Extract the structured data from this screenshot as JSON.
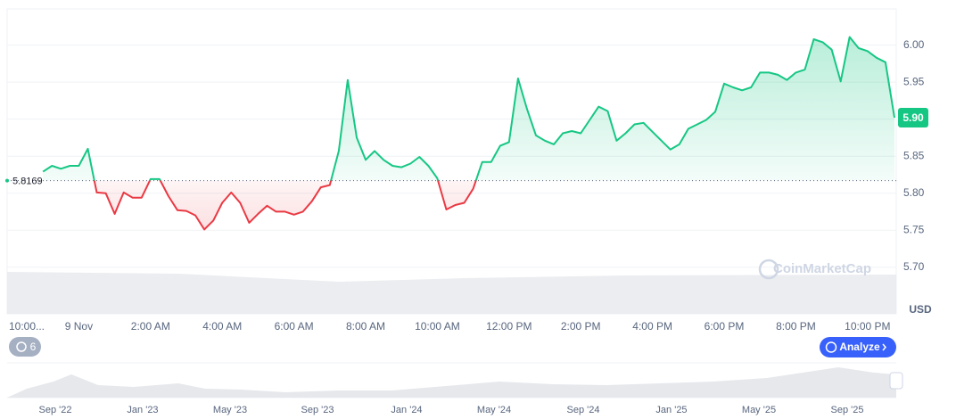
{
  "chart_data": {
    "type": "line",
    "baseline": 5.8169,
    "color_up": "#16c784",
    "color_down": "#ea3943",
    "grid": true,
    "x": [
      -1,
      -0.75,
      -0.5,
      -0.25,
      0,
      0.25,
      0.5,
      0.75,
      1,
      1.25,
      1.5,
      1.75,
      2,
      2.25,
      2.5,
      2.75,
      3,
      3.25,
      3.5,
      3.75,
      4,
      4.25,
      4.5,
      4.75,
      5,
      5.25,
      5.5,
      5.75,
      6,
      6.25,
      6.5,
      6.75,
      7,
      7.25,
      7.5,
      7.75,
      8,
      8.25,
      8.5,
      8.75,
      9,
      9.25,
      9.5,
      9.75,
      10,
      10.25,
      10.5,
      10.75,
      11,
      11.25,
      11.5,
      11.75,
      12,
      12.25,
      12.5,
      12.75,
      13,
      13.25,
      13.5,
      13.75,
      14,
      14.25,
      14.5,
      14.75,
      15,
      15.25,
      15.5,
      15.75,
      16,
      16.25,
      16.5,
      16.75,
      17,
      17.25,
      17.5,
      17.75,
      18,
      18.25,
      18.5,
      18.75,
      19,
      19.25,
      19.5,
      19.75,
      20,
      20.25,
      20.5,
      20.75,
      21,
      21.25,
      21.5,
      21.75,
      22,
      22.25,
      22.5,
      22.75
    ],
    "series": [
      {
        "values": [
          5.829,
          5.837,
          5.833,
          5.837,
          5.837,
          5.86,
          5.801,
          5.8,
          5.772,
          5.801,
          5.794,
          5.794,
          5.819,
          5.819,
          5.796,
          5.777,
          5.776,
          5.77,
          5.751,
          5.763,
          5.787,
          5.801,
          5.787,
          5.76,
          5.772,
          5.783,
          5.775,
          5.775,
          5.771,
          5.775,
          5.789,
          5.808,
          5.811,
          5.857,
          5.953,
          5.875,
          5.845,
          5.857,
          5.845,
          5.837,
          5.835,
          5.84,
          5.849,
          5.837,
          5.82,
          5.778,
          5.784,
          5.787,
          5.806,
          5.842,
          5.842,
          5.864,
          5.869,
          5.955,
          5.914,
          5.878,
          5.871,
          5.866,
          5.881,
          5.884,
          5.881,
          5.899,
          5.917,
          5.911,
          5.871,
          5.881,
          5.893,
          5.895,
          5.883,
          5.871,
          5.859,
          5.866,
          5.887,
          5.893,
          5.899,
          5.91,
          5.948,
          5.943,
          5.939,
          5.943,
          5.963,
          5.963,
          5.96,
          5.953,
          5.963,
          5.967,
          6.008,
          6.004,
          5.994,
          5.951,
          6.011,
          5.996,
          5.992,
          5.983,
          5.977,
          5.902
        ],
        "value_labels": [
          null,
          null,
          null,
          null,
          null,
          null,
          null,
          null,
          null,
          null,
          null,
          null,
          null,
          null,
          null,
          null,
          null,
          null,
          null,
          null,
          null,
          null,
          null,
          null,
          null,
          null,
          null,
          null,
          null,
          null,
          null,
          null,
          null,
          null,
          null,
          null,
          null,
          null,
          null,
          null,
          null,
          null,
          null,
          null,
          null,
          null,
          null,
          null,
          null,
          null,
          null,
          null,
          null,
          null,
          null,
          null,
          null,
          null,
          null,
          null,
          null,
          null,
          null,
          null,
          null,
          null,
          null,
          null,
          null,
          null,
          null,
          null,
          null,
          null,
          null,
          null,
          null,
          null,
          null,
          null,
          null,
          null,
          null,
          null,
          null,
          null,
          null,
          null,
          null,
          null,
          null,
          null,
          null,
          null,
          null,
          "5.90"
        ]
      }
    ],
    "ylim": [
      5.637,
      6.049
    ],
    "yticks": [
      {
        "value": 5.7,
        "label": "5.70"
      },
      5.75,
      {
        "value": 5.8,
        "label": "5.80"
      },
      5.85,
      {
        "value": 5.9,
        "label": "5.90"
      },
      5.95,
      {
        "value": 6,
        "label": "6.00"
      }
    ],
    "xlim": [
      -2,
      22.8
    ],
    "xticks": [
      {
        "value": -2,
        "label": "10:00..."
      },
      {
        "value": 0,
        "label": "9 Nov"
      },
      {
        "value": 2,
        "label": "2:00 AM"
      },
      {
        "value": 4,
        "label": "4:00 AM"
      },
      {
        "value": 6,
        "label": "6:00 AM"
      },
      {
        "value": 8,
        "label": "8:00 AM"
      },
      {
        "value": 10,
        "label": "10:00 AM"
      },
      {
        "value": 12,
        "label": "12:00 PM"
      },
      {
        "value": 14,
        "label": "2:00 PM"
      },
      {
        "value": 16,
        "label": "4:00 PM"
      },
      {
        "value": 18,
        "label": "6:00 PM"
      },
      {
        "value": 20,
        "label": "8:00 PM"
      },
      {
        "value": 22,
        "label": "10:00 PM"
      }
    ],
    "currency": "USD",
    "watermark": "CoinMarketCap",
    "history_badge": "6",
    "analyze_button": "Analyze",
    "navigator_labels": [
      "Sep '22",
      "Jan '23",
      "May '23",
      "Sep '23",
      "Jan '24",
      "May '24",
      "Sep '24",
      "Jan '25",
      "May '25",
      "Sep '25"
    ]
  }
}
